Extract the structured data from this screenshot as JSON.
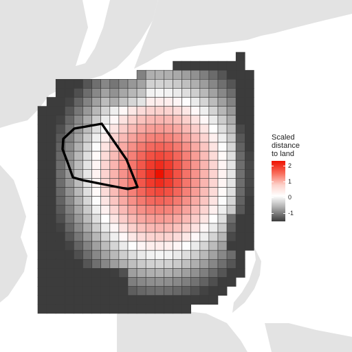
{
  "legend": {
    "title": "Scaled\ndistance\nto land",
    "ticks": [
      {
        "value": 2,
        "label": "2"
      },
      {
        "value": 1,
        "label": "1"
      },
      {
        "value": 0,
        "label": "0"
      },
      {
        "value": -1,
        "label": "-1"
      }
    ],
    "range": [
      -1.5,
      2.3
    ],
    "colors": {
      "high": "#ee1100",
      "mid": "#ffffff",
      "low": "#3c3c3c"
    }
  },
  "map": {
    "land_color": "#e3e3e3",
    "sea_color": "#ffffff",
    "grid_line_color": "#3a3a3a",
    "polygon_color": "#000000",
    "peak_cell": {
      "col": 13,
      "row": 13
    }
  }
}
